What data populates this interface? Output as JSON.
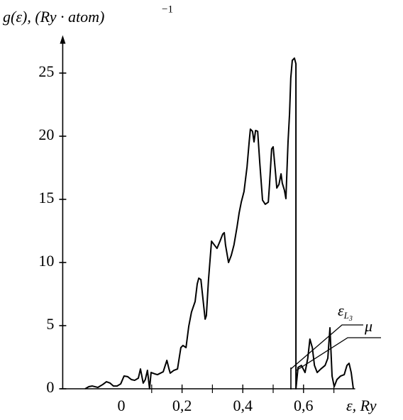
{
  "chart_data": {
    "type": "line",
    "ylabel": "g(ε), (Ry · atom)",
    "ylabel_exponent": "−1",
    "xlabel": "ε, Ry",
    "annotations": [
      {
        "text": "ε",
        "sub": "L",
        "subsub": "3"
      },
      {
        "text": "μ"
      }
    ],
    "xlim": [
      -0.2,
      0.77
    ],
    "ylim": [
      0,
      28
    ],
    "xticks": [
      0,
      {
        "value": 0.2,
        "label": "0,2"
      },
      {
        "value": 0.4,
        "label": "0,4"
      },
      {
        "value": 0.6,
        "label": "0,6"
      }
    ],
    "xminorticks": [
      0.1,
      0.3,
      0.5,
      0.7
    ],
    "yticks": [
      0,
      5,
      10,
      15,
      20,
      25
    ],
    "grid": false,
    "series": [
      {
        "color": "#000000",
        "x": [
          -0.119,
          -0.107,
          -0.096,
          -0.077,
          -0.061,
          -0.049,
          -0.037,
          -0.026,
          -0.014,
          -0.002,
          0.009,
          0.021,
          0.033,
          0.044,
          0.056,
          0.063,
          0.072,
          0.079,
          0.086,
          0.093,
          0.098,
          0.11,
          0.119,
          0.138,
          0.15,
          0.157,
          0.161,
          0.173,
          0.185,
          0.196,
          0.203,
          0.213,
          0.222,
          0.231,
          0.243,
          0.25,
          0.255,
          0.262,
          0.269,
          0.276,
          0.28,
          0.287,
          0.297,
          0.306,
          0.315,
          0.325,
          0.334,
          0.339,
          0.343,
          0.353,
          0.362,
          0.371,
          0.381,
          0.388,
          0.395,
          0.404,
          0.414,
          0.421,
          0.425,
          0.432,
          0.437,
          0.442,
          0.449,
          0.456,
          0.465,
          0.474,
          0.484,
          0.488,
          0.495,
          0.5,
          0.507,
          0.512,
          0.519,
          0.526,
          0.53,
          0.537,
          0.542,
          0.549,
          0.554,
          0.558,
          0.563,
          0.57,
          0.575,
          0.575,
          0.582,
          0.593,
          0.605,
          0.614,
          0.621,
          0.629,
          0.636,
          0.645,
          0.657,
          0.671,
          0.68,
          0.687,
          0.694,
          0.701,
          0.71,
          0.722,
          0.734,
          0.743,
          0.75,
          0.757,
          0.764
        ],
        "values": [
          0,
          0.17,
          0.22,
          0.11,
          0.34,
          0.56,
          0.45,
          0.22,
          0.22,
          0.39,
          1.01,
          0.96,
          0.73,
          0.67,
          0.84,
          1.57,
          0.45,
          0.73,
          1.46,
          0,
          1.29,
          1.18,
          1.12,
          1.35,
          2.25,
          1.57,
          1.24,
          1.46,
          1.57,
          3.26,
          3.43,
          3.26,
          4.94,
          6.07,
          6.91,
          8.31,
          8.76,
          8.65,
          7.08,
          5.51,
          5.79,
          8.6,
          11.69,
          11.4,
          11.12,
          11.69,
          12.25,
          12.36,
          11.4,
          10.0,
          10.56,
          11.4,
          12.81,
          13.93,
          14.78,
          15.62,
          17.58,
          19.55,
          20.56,
          20.39,
          19.55,
          20.45,
          20.39,
          17.87,
          14.94,
          14.61,
          14.78,
          16.18,
          18.99,
          19.16,
          17.3,
          15.9,
          16.18,
          17.02,
          16.29,
          15.73,
          15.06,
          19.55,
          21.8,
          24.61,
          26.01,
          26.18,
          25.73,
          0,
          1.69,
          1.85,
          1.29,
          2.42,
          3.93,
          3.26,
          1.85,
          1.29,
          1.57,
          1.85,
          2.42,
          4.83,
          1.01,
          0.17,
          0.73,
          1.01,
          1.12,
          1.85,
          2.02,
          1.29,
          0
        ]
      }
    ]
  }
}
